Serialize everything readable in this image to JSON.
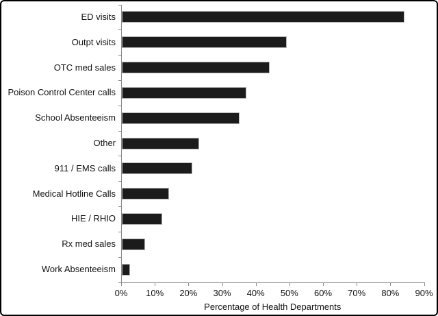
{
  "chart_data": {
    "type": "bar",
    "orientation": "horizontal",
    "title": "",
    "categories": [
      "ED visits",
      "Outpt visits",
      "OTC med sales",
      "Poison Control Center calls",
      "School Absenteeism",
      "Other",
      "911 / EMS calls",
      "Medical Hotline Calls",
      "HIE / RHIO",
      "Rx med sales",
      "Work Absenteeism"
    ],
    "values": [
      84,
      49,
      44,
      37,
      35,
      23,
      21,
      14,
      12,
      7,
      2.5
    ],
    "xlabel": "Percentage of Health Departments",
    "ylabel": "",
    "x_ticks": [
      "0%",
      "10%",
      "20%",
      "30%",
      "40%",
      "50%",
      "60%",
      "70%",
      "80%",
      "90%"
    ],
    "xlim": [
      0,
      90
    ],
    "grid": false,
    "legend": false,
    "colors": {
      "bar_fill": "#1b1b1b",
      "bar_border": "#b3b3b3",
      "axis": "#888888",
      "text": "#111111",
      "background": "#ffffff",
      "frame_border": "#000000"
    }
  }
}
